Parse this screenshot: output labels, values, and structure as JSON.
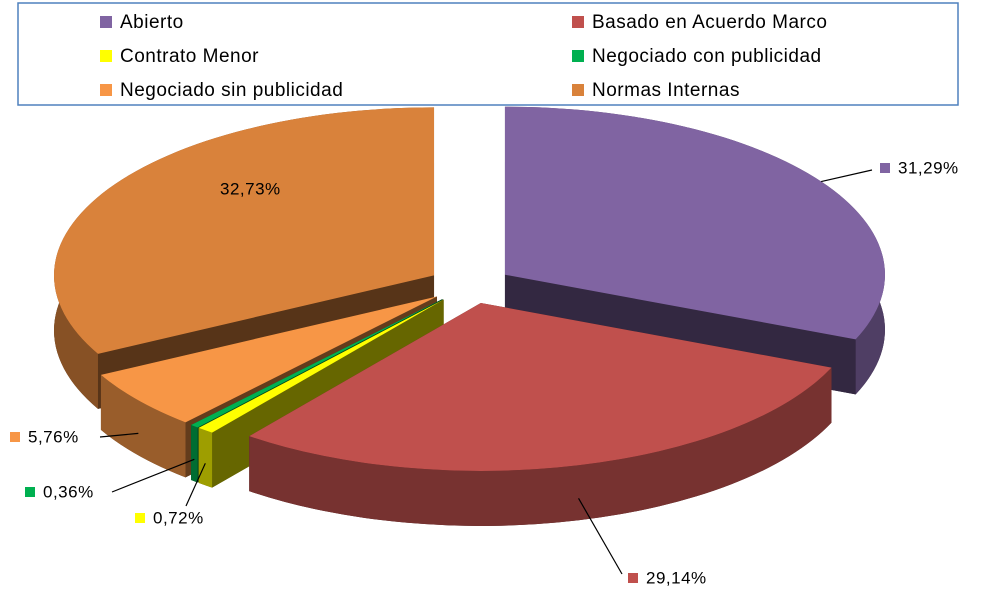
{
  "chart_data": {
    "type": "pie3d",
    "categories": [
      "Abierto",
      "Basado en Acuerdo Marco",
      "Contrato Menor",
      "Negociado con publicidad",
      "Negociado sin publicidad",
      "Normas Internas"
    ],
    "values": [
      31.29,
      29.14,
      0.72,
      0.36,
      5.76,
      32.73
    ],
    "value_labels": [
      "31,29%",
      "29,14%",
      "0,72%",
      "0,36%",
      "5,76%",
      "32,73%"
    ],
    "colors": [
      "#8064a2",
      "#c0504d",
      "#ffff00",
      "#00b050",
      "#f79646",
      "#d9823b"
    ],
    "legend": "top"
  }
}
